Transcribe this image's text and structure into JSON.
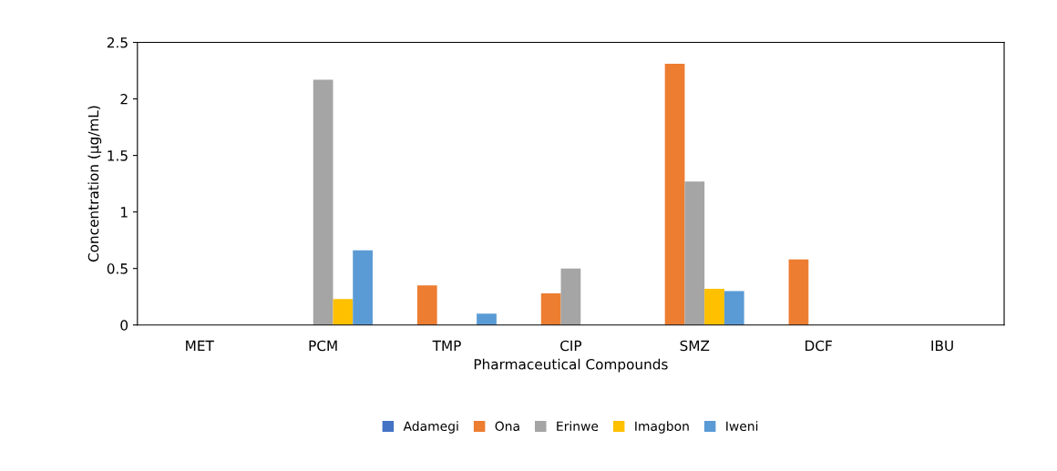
{
  "chart_data": {
    "type": "bar",
    "xlabel": "Pharmaceutical Compounds",
    "ylabel": "Concentration (µg/mL)",
    "categories": [
      "MET",
      "PCM",
      "TMP",
      "CIP",
      "SMZ",
      "DCF",
      "IBU"
    ],
    "series": [
      {
        "name": "Adamegi",
        "color": "#4472c4",
        "values": [
          0,
          0,
          0,
          0,
          0,
          0,
          0
        ]
      },
      {
        "name": "Ona",
        "color": "#ed7d31",
        "values": [
          0,
          0,
          0.35,
          0.28,
          2.31,
          0.58,
          0
        ]
      },
      {
        "name": "Erinwe",
        "color": "#a5a5a5",
        "values": [
          0,
          2.17,
          0,
          0.5,
          1.27,
          0,
          0
        ]
      },
      {
        "name": "Imagbon",
        "color": "#ffc000",
        "values": [
          0,
          0.23,
          0,
          0,
          0.32,
          0,
          0
        ]
      },
      {
        "name": "Iweni",
        "color": "#5b9bd5",
        "values": [
          0,
          0.66,
          0.1,
          0,
          0.3,
          0,
          0
        ]
      }
    ],
    "ylim": [
      0,
      2.5
    ],
    "yticks": [
      0,
      0.5,
      1,
      1.5,
      2,
      2.5
    ],
    "grid": false,
    "legend": "bottom"
  }
}
